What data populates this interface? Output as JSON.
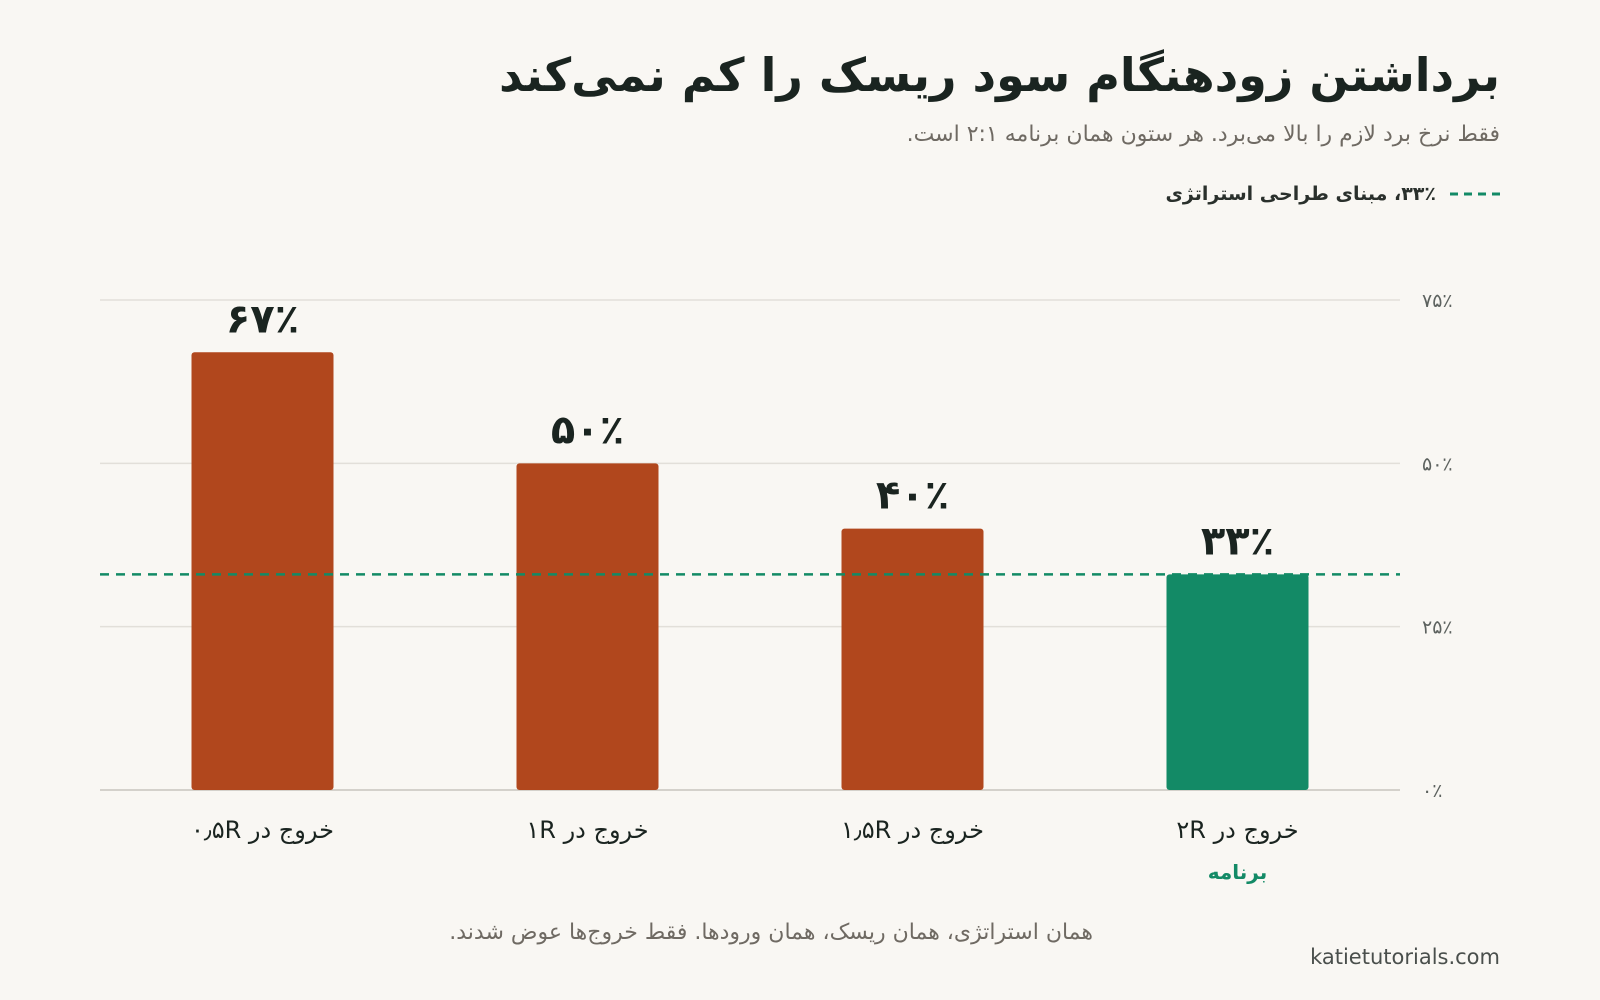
{
  "title": "برداشتن زودهنگام سود ریسک را کم نمی‌کند",
  "subtitle": "فقط نرخ برد لازم را بالا می‌برد. هر ستون همان برنامه ۲:۱ است.",
  "legend": {
    "label": "۳۳٪، مبنای طراحی استراتژی"
  },
  "footer": "همان استراتژی، همان ریسک، همان ورودها. فقط خروج‌ها عوض شدند.",
  "site": "katietutorials.com",
  "colors": {
    "bar": "#b1471d",
    "highlight": "#138a66",
    "reference": "#138a66",
    "grid": "#e2dfd9",
    "text": "#1a2420",
    "muted": "#5d625f"
  },
  "chart_data": {
    "type": "bar",
    "categories": [
      "خروج در ۰٫۵R",
      "خروج در ۱R",
      "خروج در ۱٫۵R",
      "خروج در ۲R"
    ],
    "values": [
      67,
      50,
      40,
      33
    ],
    "value_labels": [
      "۶۷٪",
      "۵۰٪",
      "۴۰٪",
      "۳۳٪"
    ],
    "highlight_index": 3,
    "highlight_note": "برنامه",
    "reference_line": {
      "value": 33,
      "style": "dashed"
    },
    "ylim": [
      0,
      75
    ],
    "yticks": [
      0,
      25,
      50,
      75
    ],
    "ytick_labels": [
      "۰٪",
      "۲۵٪",
      "۵۰٪",
      "۷۵٪"
    ],
    "y_axis_side": "right",
    "grid": true,
    "legend_position": "top-right"
  }
}
